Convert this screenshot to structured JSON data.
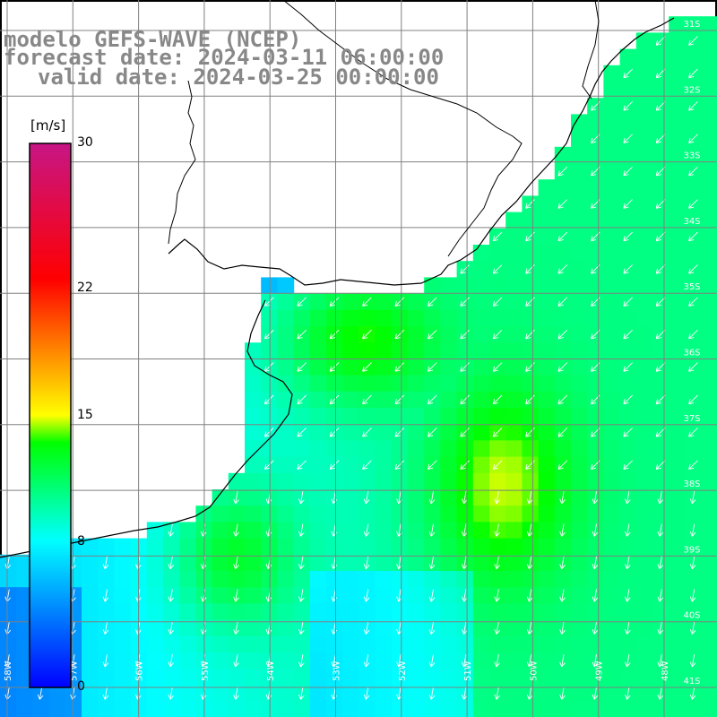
{
  "map": {
    "title_line1": "modelo GEFS-WAVE (NCEP)",
    "title_line2": "forecast date: 2024-03-11 06:00:00",
    "title_line3": "valid date: 2024-03-25 00:00:00",
    "region": "South Atlantic off Uruguay / Southern Brazil",
    "variable": "10 m wind speed and direction",
    "colors": {
      "land": "#ffffff",
      "coast": "#000000",
      "grid": "#808080",
      "arrows": "#ffffff"
    }
  },
  "colorbar": {
    "unit": "[m/s]",
    "min": 0,
    "max": 30,
    "ticks": [
      "30",
      "22",
      "15",
      "8",
      "0"
    ],
    "stops": [
      "#0000ff",
      "#00ffff",
      "#00ff00",
      "#ffff00",
      "#ff0000",
      "#c71585"
    ]
  },
  "lat_labels": [
    "31S",
    "32S",
    "33S",
    "34S",
    "35S",
    "36S",
    "37S",
    "38S",
    "39S",
    "40S",
    "41S"
  ],
  "lon_labels": [
    "58W",
    "57W",
    "56W",
    "55W",
    "54W",
    "53W",
    "52W",
    "51W",
    "50W",
    "49W",
    "48W"
  ]
}
